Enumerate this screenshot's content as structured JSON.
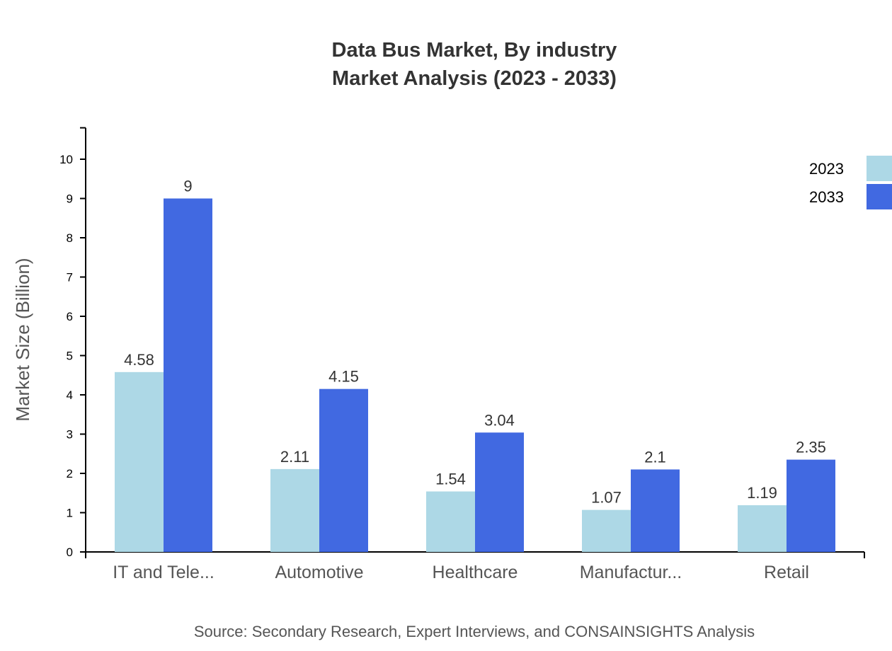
{
  "chart_data": {
    "type": "bar",
    "title": "Data Bus Market, By industry",
    "subtitle": "Market Analysis (2023 - 2033)",
    "ylabel": "Market Size (Billion)",
    "xlabel": "",
    "categories": [
      "IT and Tele...",
      "Automotive",
      "Healthcare",
      "Manufactur...",
      "Retail"
    ],
    "series": [
      {
        "name": "2023",
        "color": "#ADD8E6",
        "values": [
          4.58,
          2.11,
          1.54,
          1.07,
          1.19
        ]
      },
      {
        "name": "2033",
        "color": "#4169E1",
        "values": [
          9,
          4.15,
          3.04,
          2.1,
          2.35
        ]
      }
    ],
    "yticks": [
      0,
      1,
      2,
      3,
      4,
      5,
      6,
      7,
      8,
      9,
      10
    ],
    "ylim": [
      0,
      10.8
    ],
    "grid": false,
    "legend": "top-right",
    "source": "Source: Secondary Research, Expert Interviews, and CONSAINSIGHTS Analysis"
  }
}
